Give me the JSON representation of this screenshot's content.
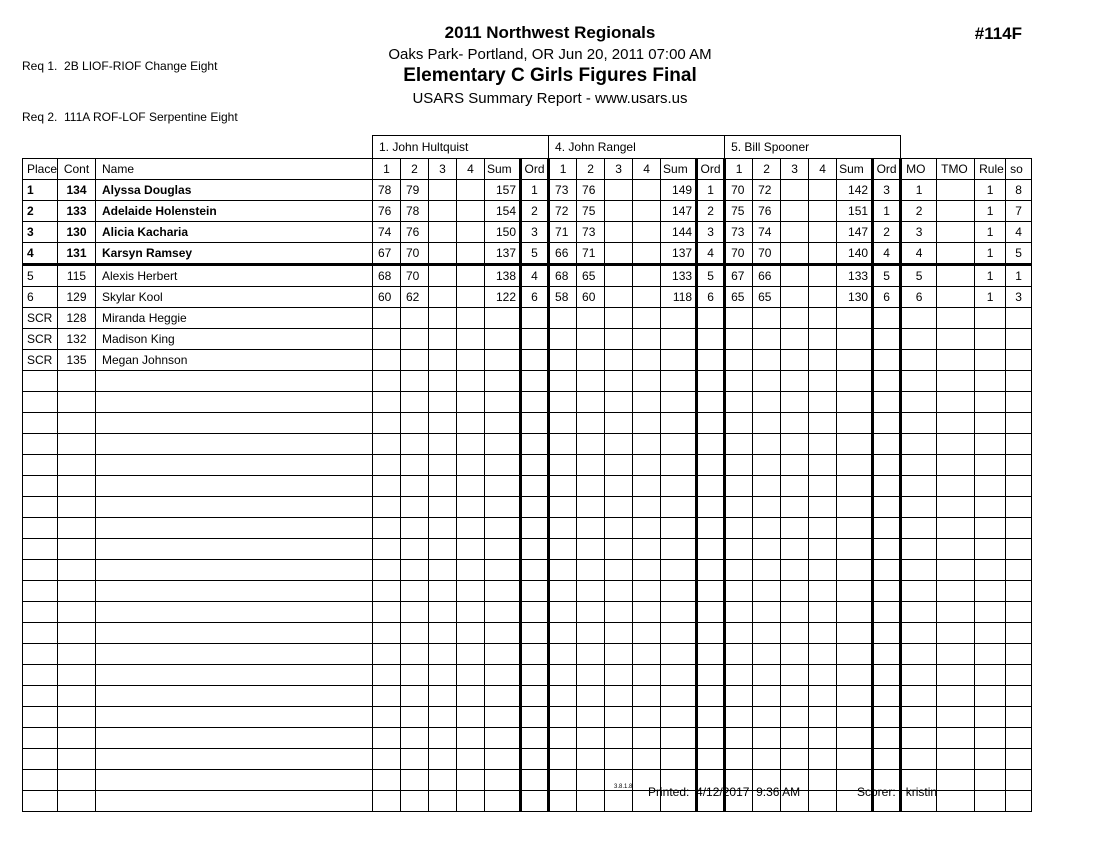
{
  "header": {
    "req1": "Req 1.  2B LIOF-RIOF Change Eight",
    "req2": "Req 2.  111A ROF-LOF Serpentine Eight",
    "event_title": "2011 Northwest Regionals",
    "venue_date": "Oaks Park- Portland, OR  Jun 20, 2011  07:00 AM",
    "event_name": "Elementary C Girls Figures Final",
    "report_type": "USARS Summary Report - www.usars.us",
    "event_number": "#114F"
  },
  "table": {
    "judges": [
      "1.  John Hultquist",
      "4.  John Rangel",
      "5.  Bill Spooner"
    ],
    "columns": {
      "place": "Place",
      "cont": "Cont",
      "name": "Name",
      "judge_cols": [
        "1",
        "2",
        "3",
        "4",
        "Sum",
        "Ord"
      ],
      "mo": "MO",
      "tmo": "TMO",
      "rule": "Rule",
      "so": "so"
    },
    "rows": [
      {
        "place": "1",
        "cont": "134",
        "name": "Alyssa Douglas",
        "bold": true,
        "thick_bottom": false,
        "judges": [
          {
            "s": [
              "78",
              "79",
              "",
              ""
            ],
            "sum": "157",
            "ord": "1"
          },
          {
            "s": [
              "73",
              "76",
              "",
              ""
            ],
            "sum": "149",
            "ord": "1"
          },
          {
            "s": [
              "70",
              "72",
              "",
              ""
            ],
            "sum": "142",
            "ord": "3"
          }
        ],
        "mo": "1",
        "tmo": "",
        "rule": "1",
        "so": "8"
      },
      {
        "place": "2",
        "cont": "133",
        "name": "Adelaide Holenstein",
        "bold": true,
        "thick_bottom": false,
        "judges": [
          {
            "s": [
              "76",
              "78",
              "",
              ""
            ],
            "sum": "154",
            "ord": "2"
          },
          {
            "s": [
              "72",
              "75",
              "",
              ""
            ],
            "sum": "147",
            "ord": "2"
          },
          {
            "s": [
              "75",
              "76",
              "",
              ""
            ],
            "sum": "151",
            "ord": "1"
          }
        ],
        "mo": "2",
        "tmo": "",
        "rule": "1",
        "so": "7"
      },
      {
        "place": "3",
        "cont": "130",
        "name": "Alicia Kacharia",
        "bold": true,
        "thick_bottom": false,
        "judges": [
          {
            "s": [
              "74",
              "76",
              "",
              ""
            ],
            "sum": "150",
            "ord": "3"
          },
          {
            "s": [
              "71",
              "73",
              "",
              ""
            ],
            "sum": "144",
            "ord": "3"
          },
          {
            "s": [
              "73",
              "74",
              "",
              ""
            ],
            "sum": "147",
            "ord": "2"
          }
        ],
        "mo": "3",
        "tmo": "",
        "rule": "1",
        "so": "4"
      },
      {
        "place": "4",
        "cont": "131",
        "name": "Karsyn Ramsey",
        "bold": true,
        "thick_bottom": true,
        "judges": [
          {
            "s": [
              "67",
              "70",
              "",
              ""
            ],
            "sum": "137",
            "ord": "5"
          },
          {
            "s": [
              "66",
              "71",
              "",
              ""
            ],
            "sum": "137",
            "ord": "4"
          },
          {
            "s": [
              "70",
              "70",
              "",
              ""
            ],
            "sum": "140",
            "ord": "4"
          }
        ],
        "mo": "4",
        "tmo": "",
        "rule": "1",
        "so": "5"
      },
      {
        "place": "5",
        "cont": "115",
        "name": "Alexis Herbert",
        "bold": false,
        "thick_bottom": false,
        "judges": [
          {
            "s": [
              "68",
              "70",
              "",
              ""
            ],
            "sum": "138",
            "ord": "4"
          },
          {
            "s": [
              "68",
              "65",
              "",
              ""
            ],
            "sum": "133",
            "ord": "5"
          },
          {
            "s": [
              "67",
              "66",
              "",
              ""
            ],
            "sum": "133",
            "ord": "5"
          }
        ],
        "mo": "5",
        "tmo": "",
        "rule": "1",
        "so": "1"
      },
      {
        "place": "6",
        "cont": "129",
        "name": "Skylar Kool",
        "bold": false,
        "thick_bottom": false,
        "judges": [
          {
            "s": [
              "60",
              "62",
              "",
              ""
            ],
            "sum": "122",
            "ord": "6"
          },
          {
            "s": [
              "58",
              "60",
              "",
              ""
            ],
            "sum": "118",
            "ord": "6"
          },
          {
            "s": [
              "65",
              "65",
              "",
              ""
            ],
            "sum": "130",
            "ord": "6"
          }
        ],
        "mo": "6",
        "tmo": "",
        "rule": "1",
        "so": "3"
      },
      {
        "place": "SCR",
        "cont": "128",
        "name": "Miranda Heggie",
        "bold": false,
        "thick_bottom": false,
        "judges": [
          {
            "s": [
              "",
              "",
              "",
              ""
            ],
            "sum": "",
            "ord": ""
          },
          {
            "s": [
              "",
              "",
              "",
              ""
            ],
            "sum": "",
            "ord": ""
          },
          {
            "s": [
              "",
              "",
              "",
              ""
            ],
            "sum": "",
            "ord": ""
          }
        ],
        "mo": "",
        "tmo": "",
        "rule": "",
        "so": ""
      },
      {
        "place": "SCR",
        "cont": "132",
        "name": "Madison King",
        "bold": false,
        "thick_bottom": false,
        "judges": [
          {
            "s": [
              "",
              "",
              "",
              ""
            ],
            "sum": "",
            "ord": ""
          },
          {
            "s": [
              "",
              "",
              "",
              ""
            ],
            "sum": "",
            "ord": ""
          },
          {
            "s": [
              "",
              "",
              "",
              ""
            ],
            "sum": "",
            "ord": ""
          }
        ],
        "mo": "",
        "tmo": "",
        "rule": "",
        "so": ""
      },
      {
        "place": "SCR",
        "cont": "135",
        "name": "Megan Johnson",
        "bold": false,
        "thick_bottom": false,
        "judges": [
          {
            "s": [
              "",
              "",
              "",
              ""
            ],
            "sum": "",
            "ord": ""
          },
          {
            "s": [
              "",
              "",
              "",
              ""
            ],
            "sum": "",
            "ord": ""
          },
          {
            "s": [
              "",
              "",
              "",
              ""
            ],
            "sum": "",
            "ord": ""
          }
        ],
        "mo": "",
        "tmo": "",
        "rule": "",
        "so": ""
      }
    ],
    "empty_row_count": 21
  },
  "footer": {
    "version": "3.8.1.8",
    "printed_label": "Printed:",
    "printed_value": "4/12/2017  9:36 AM",
    "scorer_label": "Scorer:",
    "scorer_value": "kristin"
  }
}
